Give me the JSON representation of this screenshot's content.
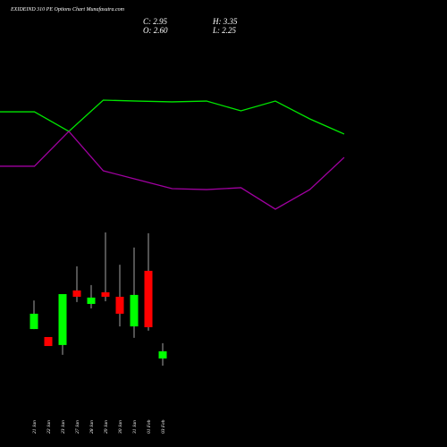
{
  "chart_data": [
    {
      "type": "candlestick",
      "title": "EXIDEIND 310 PE Options Chart Munafasutra.com",
      "info": [
        "C: 2.95",
        "H: 3.35",
        "O: 2.60",
        "L: 2.25"
      ],
      "categories": [
        "21 Jan",
        "22 Jan",
        "23 Jan",
        "27 Jan",
        "28 Jan",
        "29 Jan",
        "30 Jan",
        "31 Jan",
        "01 Feb",
        "03 Feb"
      ],
      "open": [
        4.04,
        3.65,
        3.26,
        5.93,
        5.27,
        5.84,
        5.62,
        4.17,
        6.89,
        2.6
      ],
      "high": [
        5.44,
        3.65,
        5.75,
        7.11,
        6.19,
        8.77,
        7.19,
        8.03,
        8.73,
        3.35
      ],
      "low": [
        4.04,
        3.21,
        2.78,
        5.36,
        5.05,
        5.4,
        4.17,
        3.61,
        3.96,
        2.25
      ],
      "close": [
        4.79,
        3.21,
        5.75,
        5.62,
        5.58,
        5.62,
        4.79,
        5.71,
        4.13,
        2.95
      ],
      "up_color": "#00ff00",
      "down_color": "#ff0000",
      "ylim": [
        2,
        9
      ]
    },
    {
      "type": "line",
      "x": [
        0,
        1,
        2,
        3,
        4,
        5,
        6,
        7,
        8,
        9,
        10
      ],
      "xlim": [
        0,
        10
      ],
      "ylim": [
        0,
        100
      ],
      "series": [
        {
          "color": "#00e600",
          "values": [
            83.3,
            83.3,
            68.7,
            92,
            91.3,
            90.7,
            91.3,
            84,
            91.3,
            78,
            66.7
          ]
        },
        {
          "color": "#a000a0",
          "values": [
            42.7,
            42.7,
            68.7,
            39.3,
            32.7,
            26,
            25.3,
            26.7,
            10.7,
            25.3,
            49.3
          ]
        }
      ]
    }
  ]
}
